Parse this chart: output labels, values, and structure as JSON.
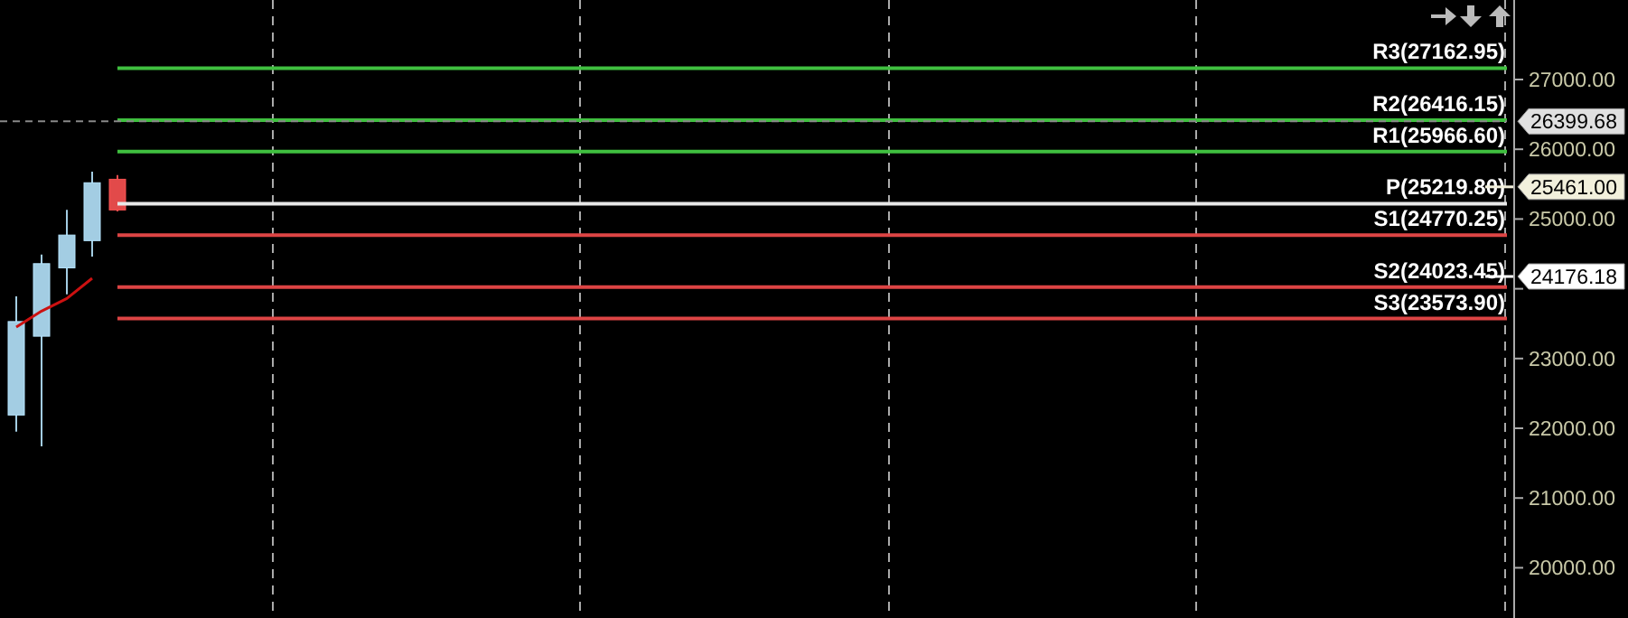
{
  "chart_data": {
    "type": "candlestick",
    "categories": [
      null,
      null,
      null,
      null,
      null,
      null,
      null,
      null,
      null,
      null,
      null,
      null,
      null,
      null,
      null,
      null,
      null,
      null,
      null,
      null,
      null,
      null,
      null,
      null,
      null,
      null,
      null,
      null,
      null,
      null,
      null,
      null,
      null,
      null,
      null,
      null,
      null,
      null,
      null,
      null,
      null,
      null,
      null,
      null,
      null,
      null,
      null,
      null,
      null,
      null,
      null,
      null,
      null,
      null,
      null,
      null,
      null,
      null,
      null,
      null
    ],
    "ohlc": [
      [
        22190,
        23890,
        21950,
        23530
      ],
      [
        23320,
        24490,
        21740,
        24360
      ],
      [
        24300,
        25130,
        23920,
        24770
      ],
      [
        24690,
        25680,
        24460,
        25520
      ],
      [
        25570,
        25630,
        25110,
        25130
      ],
      null,
      null,
      null,
      null,
      null,
      null,
      null,
      null,
      null,
      null,
      null,
      null,
      null,
      null,
      null,
      null,
      null,
      null,
      null,
      null,
      null,
      null,
      null,
      null,
      null,
      null,
      null,
      null,
      null,
      null,
      null,
      null,
      null,
      null,
      null,
      null,
      null,
      null,
      null,
      null,
      null,
      null,
      null,
      null,
      null,
      null,
      null,
      null,
      null,
      null,
      null,
      null,
      null,
      null,
      null
    ],
    "colors": [
      "#a3cde3",
      "#a3cde3",
      "#a3cde3",
      "#a3cde3",
      "#e24a4a",
      null,
      null,
      null,
      null,
      null,
      null,
      null,
      null,
      null,
      null,
      null,
      null,
      null,
      null,
      null,
      null,
      null,
      null,
      null,
      null,
      null,
      null,
      null,
      null,
      null,
      null,
      null,
      null,
      null,
      null,
      null,
      null,
      null,
      null,
      null,
      null,
      null,
      null,
      null,
      null,
      null,
      null,
      null,
      null,
      null,
      null,
      null,
      null,
      null,
      null,
      null,
      null,
      null,
      null,
      null
    ],
    "series": [
      {
        "type": "line",
        "color": "#cc1111",
        "values": [
          23450,
          23680,
          23860,
          24150,
          null,
          null,
          null,
          null,
          null,
          null,
          null,
          null,
          null,
          null,
          null,
          null,
          null,
          null,
          null,
          null,
          null,
          null,
          null,
          null,
          null,
          null,
          null,
          null,
          null,
          null,
          null,
          null,
          null,
          null,
          null,
          null,
          null,
          null,
          null,
          null,
          null,
          null,
          null,
          null,
          null,
          null,
          null,
          null,
          null,
          null,
          null,
          null,
          null,
          null,
          null,
          null,
          null,
          null,
          null,
          null
        ]
      }
    ],
    "ylim": [
      19280,
      28140
    ],
    "yticks": [
      {
        "value": 20000,
        "label": "20000.00"
      },
      {
        "value": 21000,
        "label": "21000.00"
      },
      {
        "value": 22000,
        "label": "22000.00"
      },
      {
        "value": 23000,
        "label": "23000.00"
      },
      {
        "value": 24000,
        "label": null
      },
      {
        "value": 25000,
        "label": "25000.00"
      },
      {
        "value": 26000,
        "label": "26000.00"
      },
      {
        "value": 27000,
        "label": "27000.00"
      }
    ],
    "ref_lines": [
      {
        "axis": "y",
        "value": 27162.95,
        "label": "R3(27162.95)",
        "color": "#3fbf3f"
      },
      {
        "axis": "y",
        "value": 26416.15,
        "label": "R2(26416.15)",
        "color": "#3fbf3f"
      },
      {
        "axis": "y",
        "value": 25966.6,
        "label": "R1(25966.60)",
        "color": "#3fbf3f"
      },
      {
        "axis": "y",
        "value": 25219.8,
        "label": "P(25219.80)",
        "color": "#e8e8e8"
      },
      {
        "axis": "y",
        "value": 24770.25,
        "label": "S1(24770.25)",
        "color": "#dd4444"
      },
      {
        "axis": "y",
        "value": 24023.45,
        "label": "S2(24023.45)",
        "color": "#dd4444"
      },
      {
        "axis": "y",
        "value": 23573.9,
        "label": "S3(23573.90)",
        "color": "#dd4444"
      },
      {
        "axis": "y",
        "value": 26399.68,
        "label": "26399.68",
        "color": "#888888",
        "line_style": "dashed"
      },
      {
        "axis": "y",
        "value": 25461,
        "label": "25461.00",
        "color": "#f2f0dc",
        "line_style": "solid"
      },
      {
        "axis": "y",
        "value": 24176.18,
        "label": "24176.18",
        "color": "#ffffff",
        "line_style": "solid"
      }
    ]
  }
}
